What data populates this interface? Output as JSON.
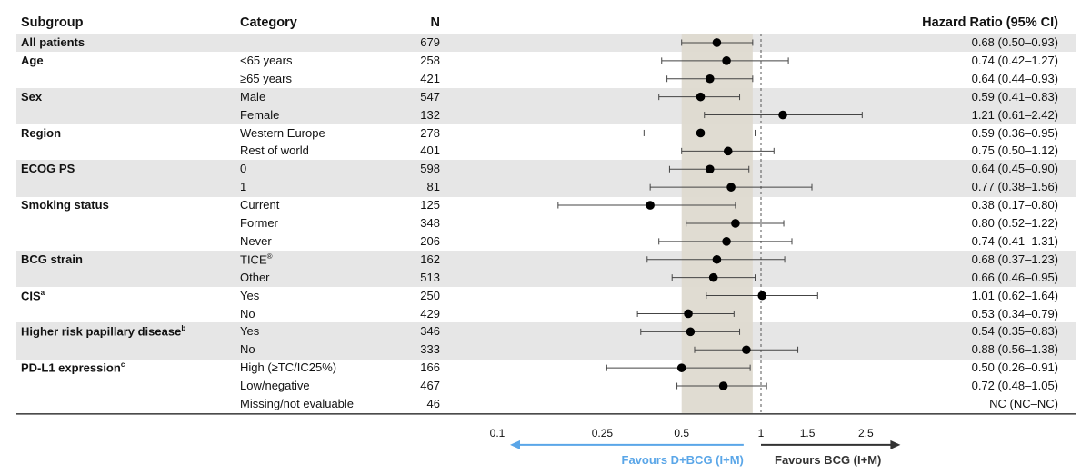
{
  "headers": {
    "subgroup": "Subgroup",
    "category": "Category",
    "n": "N",
    "hr": "Hazard Ratio (95% CI)"
  },
  "colors": {
    "band": "#e6e6e6",
    "ci_region": "#dedad0",
    "favours_left": "#5aa6e8",
    "favours_right": "#333333"
  },
  "chart_data": {
    "type": "forest",
    "x_scale": "log",
    "xlim": [
      0.1,
      2.5
    ],
    "ticks": [
      {
        "v": 0.1,
        "label": "0.1"
      },
      {
        "v": 0.25,
        "label": "0.25"
      },
      {
        "v": 0.5,
        "label": "0.5"
      },
      {
        "v": 1,
        "label": "1"
      },
      {
        "v": 1.5,
        "label": "1.5"
      },
      {
        "v": 2.5,
        "label": "2.5"
      }
    ],
    "reference_line": 1,
    "shaded_ci": [
      0.5,
      0.93
    ],
    "favours_left": "Favours D+BCG (I+M)",
    "favours_right": "Favours BCG (I+M)",
    "rows": [
      {
        "subgroup": "All patients",
        "sup": "",
        "category": "",
        "csup": "",
        "n": "679",
        "hr": 0.68,
        "lo": 0.5,
        "hi": 0.93,
        "label": "0.68 (0.50–0.93)",
        "band": true
      },
      {
        "subgroup": "Age",
        "sup": "",
        "category": "<65 years",
        "csup": "",
        "n": "258",
        "hr": 0.74,
        "lo": 0.42,
        "hi": 1.27,
        "label": "0.74 (0.42–1.27)",
        "band": false
      },
      {
        "subgroup": "",
        "sup": "",
        "category": "≥65 years",
        "csup": "",
        "n": "421",
        "hr": 0.64,
        "lo": 0.44,
        "hi": 0.93,
        "label": "0.64 (0.44–0.93)",
        "band": false
      },
      {
        "subgroup": "Sex",
        "sup": "",
        "category": "Male",
        "csup": "",
        "n": "547",
        "hr": 0.59,
        "lo": 0.41,
        "hi": 0.83,
        "label": "0.59 (0.41–0.83)",
        "band": true
      },
      {
        "subgroup": "",
        "sup": "",
        "category": "Female",
        "csup": "",
        "n": "132",
        "hr": 1.21,
        "lo": 0.61,
        "hi": 2.42,
        "label": "1.21 (0.61–2.42)",
        "band": true
      },
      {
        "subgroup": "Region",
        "sup": "",
        "category": "Western Europe",
        "csup": "",
        "n": "278",
        "hr": 0.59,
        "lo": 0.36,
        "hi": 0.95,
        "label": "0.59 (0.36–0.95)",
        "band": false
      },
      {
        "subgroup": "",
        "sup": "",
        "category": "Rest of world",
        "csup": "",
        "n": "401",
        "hr": 0.75,
        "lo": 0.5,
        "hi": 1.12,
        "label": "0.75 (0.50–1.12)",
        "band": false
      },
      {
        "subgroup": "ECOG PS",
        "sup": "",
        "category": "0",
        "csup": "",
        "n": "598",
        "hr": 0.64,
        "lo": 0.45,
        "hi": 0.9,
        "label": "0.64 (0.45–0.90)",
        "band": true
      },
      {
        "subgroup": "",
        "sup": "",
        "category": "1",
        "csup": "",
        "n": "81",
        "hr": 0.77,
        "lo": 0.38,
        "hi": 1.56,
        "label": "0.77 (0.38–1.56)",
        "band": true
      },
      {
        "subgroup": "Smoking status",
        "sup": "",
        "category": "Current",
        "csup": "",
        "n": "125",
        "hr": 0.38,
        "lo": 0.17,
        "hi": 0.8,
        "label": "0.38 (0.17–0.80)",
        "band": false
      },
      {
        "subgroup": "",
        "sup": "",
        "category": "Former",
        "csup": "",
        "n": "348",
        "hr": 0.8,
        "lo": 0.52,
        "hi": 1.22,
        "label": "0.80 (0.52–1.22)",
        "band": false
      },
      {
        "subgroup": "",
        "sup": "",
        "category": "Never",
        "csup": "",
        "n": "206",
        "hr": 0.74,
        "lo": 0.41,
        "hi": 1.31,
        "label": "0.74 (0.41–1.31)",
        "band": false
      },
      {
        "subgroup": "BCG strain",
        "sup": "",
        "category": "TICE",
        "csup": "®",
        "n": "162",
        "hr": 0.68,
        "lo": 0.37,
        "hi": 1.23,
        "label": "0.68 (0.37–1.23)",
        "band": true
      },
      {
        "subgroup": "",
        "sup": "",
        "category": "Other",
        "csup": "",
        "n": "513",
        "hr": 0.66,
        "lo": 0.46,
        "hi": 0.95,
        "label": "0.66 (0.46–0.95)",
        "band": true
      },
      {
        "subgroup": "CIS",
        "sup": "a",
        "category": "Yes",
        "csup": "",
        "n": "250",
        "hr": 1.01,
        "lo": 0.62,
        "hi": 1.64,
        "label": "1.01 (0.62–1.64)",
        "band": false
      },
      {
        "subgroup": "",
        "sup": "",
        "category": "No",
        "csup": "",
        "n": "429",
        "hr": 0.53,
        "lo": 0.34,
        "hi": 0.79,
        "label": "0.53 (0.34–0.79)",
        "band": false
      },
      {
        "subgroup": "Higher risk papillary disease",
        "sup": "b",
        "category": "Yes",
        "csup": "",
        "n": "346",
        "hr": 0.54,
        "lo": 0.35,
        "hi": 0.83,
        "label": "0.54 (0.35–0.83)",
        "band": true
      },
      {
        "subgroup": "",
        "sup": "",
        "category": "No",
        "csup": "",
        "n": "333",
        "hr": 0.88,
        "lo": 0.56,
        "hi": 1.38,
        "label": "0.88 (0.56–1.38)",
        "band": true
      },
      {
        "subgroup": "PD-L1 expression",
        "sup": "c",
        "category": "High (≥TC/IC25%)",
        "csup": "",
        "n": "166",
        "hr": 0.5,
        "lo": 0.26,
        "hi": 0.91,
        "label": "0.50 (0.26–0.91)",
        "band": false
      },
      {
        "subgroup": "",
        "sup": "",
        "category": "Low/negative",
        "csup": "",
        "n": "467",
        "hr": 0.72,
        "lo": 0.48,
        "hi": 1.05,
        "label": "0.72 (0.48–1.05)",
        "band": false
      },
      {
        "subgroup": "",
        "sup": "",
        "category": "Missing/not evaluable",
        "csup": "",
        "n": "46",
        "hr": null,
        "lo": null,
        "hi": null,
        "label": "NC (NC–NC)",
        "band": false
      }
    ]
  }
}
